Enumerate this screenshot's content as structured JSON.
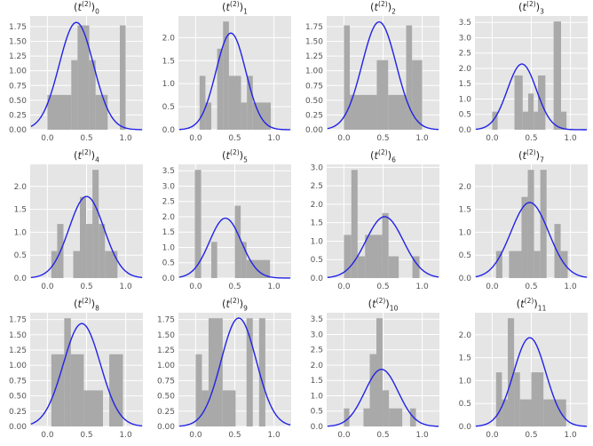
{
  "figure": {
    "background": "#ffffff",
    "axes_background": "#e5e5e5",
    "grid_color": "#ffffff",
    "bar_color": "#a9a9a9",
    "curve_color": "#2222e6",
    "tick_label_color": "#555555",
    "title_color": "#262626",
    "rows": 3,
    "cols": 4
  },
  "title_parts": {
    "open": "(",
    "var": "t",
    "sup": "(2)",
    "close": ")"
  },
  "chart_data": [
    {
      "type": "bar",
      "title": "(t^(2))_0",
      "subscript": "0",
      "xlim": [
        -0.22,
        1.22
      ],
      "xticks": [
        0,
        0.5,
        1
      ],
      "xtick_labels": [
        "0.0",
        "0.5",
        "1.0"
      ],
      "ylim": [
        0,
        1.93
      ],
      "yticks": [
        0,
        0.25,
        0.5,
        0.75,
        1.0,
        1.25,
        1.5,
        1.75
      ],
      "ytick_labels": [
        "0.00",
        "0.25",
        "0.50",
        "0.75",
        "1.00",
        "1.25",
        "1.50",
        "1.75"
      ],
      "bars": [
        [
          0.0,
          0.305,
          0.59
        ],
        [
          0.305,
          0.385,
          1.18
        ],
        [
          0.385,
          0.535,
          1.77
        ],
        [
          0.535,
          0.615,
          1.18
        ],
        [
          0.615,
          0.77,
          0.59
        ],
        [
          0.925,
          1.0,
          1.77
        ]
      ],
      "curve": {
        "shape": "gaussian",
        "mu": 0.37,
        "sigma": 0.219
      }
    },
    {
      "type": "bar",
      "title": "(t^(2))_1",
      "subscript": "1",
      "xlim": [
        -0.22,
        1.22
      ],
      "xticks": [
        0,
        0.5,
        1
      ],
      "xtick_labels": [
        "0.0",
        "0.5",
        "1.0"
      ],
      "ylim": [
        0,
        2.47
      ],
      "yticks": [
        0,
        0.5,
        1.0,
        1.5,
        2.0
      ],
      "ytick_labels": [
        "0.0",
        "0.5",
        "1.0",
        "1.5",
        "2.0"
      ],
      "bars": [
        [
          0.05,
          0.125,
          1.17
        ],
        [
          0.125,
          0.2,
          0.59
        ],
        [
          0.275,
          0.35,
          1.76
        ],
        [
          0.35,
          0.425,
          2.35
        ],
        [
          0.425,
          0.58,
          1.17
        ],
        [
          0.58,
          0.655,
          0.59
        ],
        [
          0.655,
          0.73,
          1.17
        ],
        [
          0.73,
          0.96,
          0.59
        ]
      ],
      "curve": {
        "shape": "gaussian",
        "mu": 0.45,
        "sigma": 0.19
      }
    },
    {
      "type": "bar",
      "title": "(t^(2))_2",
      "subscript": "2",
      "xlim": [
        -0.22,
        1.22
      ],
      "xticks": [
        0,
        0.5,
        1
      ],
      "xtick_labels": [
        "0.0",
        "0.5",
        "1.0"
      ],
      "ylim": [
        0,
        1.93
      ],
      "yticks": [
        0,
        0.25,
        0.5,
        0.75,
        1.0,
        1.25,
        1.5,
        1.75
      ],
      "ytick_labels": [
        "0.00",
        "0.25",
        "0.50",
        "0.75",
        "1.00",
        "1.25",
        "1.50",
        "1.75"
      ],
      "bars": [
        [
          0.0,
          0.075,
          1.77
        ],
        [
          0.075,
          0.42,
          0.59
        ],
        [
          0.42,
          0.565,
          1.18
        ],
        [
          0.565,
          0.795,
          0.59
        ],
        [
          0.795,
          0.87,
          1.77
        ],
        [
          0.87,
          1.0,
          1.18
        ]
      ],
      "curve": {
        "shape": "gaussian",
        "mu": 0.45,
        "sigma": 0.218
      }
    },
    {
      "type": "bar",
      "title": "(t^(2))_3",
      "subscript": "3",
      "xlim": [
        -0.22,
        1.22
      ],
      "xticks": [
        0,
        0.5,
        1
      ],
      "xtick_labels": [
        "0.0",
        "0.5",
        "1.0"
      ],
      "ylim": [
        0,
        3.71
      ],
      "yticks": [
        0,
        0.5,
        1.0,
        1.5,
        2.0,
        2.5,
        3.0,
        3.5
      ],
      "ytick_labels": [
        "0.0",
        "0.5",
        "1.0",
        "1.5",
        "2.0",
        "2.5",
        "3.0",
        "3.5"
      ],
      "bars": [
        [
          0.0,
          0.07,
          0.59
        ],
        [
          0.285,
          0.39,
          1.77
        ],
        [
          0.39,
          0.46,
          0.59
        ],
        [
          0.46,
          0.53,
          1.18
        ],
        [
          0.53,
          0.585,
          0.59
        ],
        [
          0.585,
          0.68,
          1.77
        ],
        [
          0.785,
          0.88,
          3.53
        ],
        [
          0.88,
          0.95,
          0.59
        ]
      ],
      "curve": {
        "shape": "gaussian",
        "mu": 0.38,
        "sigma": 0.186
      }
    },
    {
      "type": "bar",
      "title": "(t^(2))_4",
      "subscript": "4",
      "xlim": [
        -0.22,
        1.22
      ],
      "xticks": [
        0,
        0.5,
        1
      ],
      "xtick_labels": [
        "0.0",
        "0.5",
        "1.0"
      ],
      "ylim": [
        0,
        2.48
      ],
      "yticks": [
        0,
        0.5,
        1.0,
        1.5,
        2.0
      ],
      "ytick_labels": [
        "0.0",
        "0.5",
        "1.0",
        "1.5",
        "2.0"
      ],
      "bars": [
        [
          0.05,
          0.125,
          0.59
        ],
        [
          0.125,
          0.205,
          1.18
        ],
        [
          0.33,
          0.415,
          0.59
        ],
        [
          0.415,
          0.495,
          1.77
        ],
        [
          0.495,
          0.575,
          1.18
        ],
        [
          0.575,
          0.655,
          2.36
        ],
        [
          0.655,
          0.735,
          1.18
        ],
        [
          0.735,
          0.895,
          0.59
        ]
      ],
      "curve": {
        "shape": "gaussian",
        "mu": 0.5,
        "sigma": 0.224
      }
    },
    {
      "type": "bar",
      "title": "(t^(2))_5",
      "subscript": "5",
      "xlim": [
        -0.22,
        1.22
      ],
      "xticks": [
        0,
        0.5,
        1
      ],
      "xtick_labels": [
        "0.0",
        "0.5",
        "1.0"
      ],
      "ylim": [
        0,
        3.71
      ],
      "yticks": [
        0,
        0.5,
        1.0,
        1.5,
        2.0,
        2.5,
        3.0,
        3.5
      ],
      "ytick_labels": [
        "0.0",
        "0.5",
        "1.0",
        "1.5",
        "2.0",
        "2.5",
        "3.0",
        "3.5"
      ],
      "bars": [
        [
          -0.01,
          0.07,
          3.53
        ],
        [
          0.2,
          0.275,
          1.18
        ],
        [
          0.5,
          0.575,
          2.36
        ],
        [
          0.575,
          0.65,
          1.18
        ],
        [
          0.65,
          0.95,
          0.59
        ]
      ],
      "curve": {
        "shape": "gaussian",
        "mu": 0.38,
        "sigma": 0.204
      }
    },
    {
      "type": "bar",
      "title": "(t^(2))_6",
      "subscript": "6",
      "xlim": [
        -0.22,
        1.22
      ],
      "xticks": [
        0,
        0.5,
        1
      ],
      "xtick_labels": [
        "0.0",
        "0.5",
        "1.0"
      ],
      "ylim": [
        0,
        3.08
      ],
      "yticks": [
        0,
        0.5,
        1.0,
        1.5,
        2.0,
        2.5,
        3.0
      ],
      "ytick_labels": [
        "0.0",
        "0.5",
        "1.0",
        "1.5",
        "2.0",
        "2.5",
        "3.0"
      ],
      "bars": [
        [
          0.0,
          0.095,
          1.17
        ],
        [
          0.095,
          0.175,
          2.93
        ],
        [
          0.175,
          0.27,
          0.59
        ],
        [
          0.27,
          0.49,
          1.17
        ],
        [
          0.49,
          0.57,
          1.76
        ],
        [
          0.57,
          0.7,
          0.59
        ],
        [
          0.875,
          0.965,
          0.59
        ]
      ],
      "curve": {
        "shape": "gaussian",
        "mu": 0.52,
        "sigma": 0.24
      }
    },
    {
      "type": "bar",
      "title": "(t^(2))_7",
      "subscript": "7",
      "xlim": [
        -0.22,
        1.22
      ],
      "xticks": [
        0,
        0.5,
        1
      ],
      "xtick_labels": [
        "0.0",
        "0.5",
        "1.0"
      ],
      "ylim": [
        0,
        2.48
      ],
      "yticks": [
        0,
        0.5,
        1.0,
        1.5,
        2.0
      ],
      "ytick_labels": [
        "0.0",
        "0.5",
        "1.0",
        "1.5",
        "2.0"
      ],
      "bars": [
        [
          0.05,
          0.13,
          0.59
        ],
        [
          0.215,
          0.375,
          0.59
        ],
        [
          0.375,
          0.455,
          1.77
        ],
        [
          0.455,
          0.535,
          2.36
        ],
        [
          0.535,
          0.615,
          0.59
        ],
        [
          0.615,
          0.695,
          2.36
        ],
        [
          0.795,
          0.875,
          1.18
        ],
        [
          0.875,
          0.965,
          0.59
        ]
      ],
      "curve": {
        "shape": "gaussian",
        "mu": 0.48,
        "sigma": 0.242
      }
    },
    {
      "type": "bar",
      "title": "(t^(2))_8",
      "subscript": "8",
      "xlim": [
        -0.22,
        1.22
      ],
      "xticks": [
        0,
        0.5,
        1
      ],
      "xtick_labels": [
        "0.0",
        "0.5",
        "1.0"
      ],
      "ylim": [
        0,
        1.86
      ],
      "yticks": [
        0,
        0.25,
        0.5,
        0.75,
        1.0,
        1.25,
        1.5,
        1.75
      ],
      "ytick_labels": [
        "0.00",
        "0.25",
        "0.50",
        "0.75",
        "1.00",
        "1.25",
        "1.50",
        "1.75"
      ],
      "bars": [
        [
          0.05,
          0.215,
          1.18
        ],
        [
          0.215,
          0.3,
          1.77
        ],
        [
          0.3,
          0.465,
          1.18
        ],
        [
          0.465,
          0.71,
          0.59
        ],
        [
          0.79,
          0.965,
          1.18
        ]
      ],
      "curve": {
        "shape": "gaussian",
        "mu": 0.44,
        "sigma": 0.237
      }
    },
    {
      "type": "bar",
      "title": "(t^(2))_9",
      "subscript": "9",
      "xlim": [
        -0.22,
        1.22
      ],
      "xticks": [
        0,
        0.5,
        1
      ],
      "xtick_labels": [
        "0.0",
        "0.5",
        "1.0"
      ],
      "ylim": [
        0,
        1.86
      ],
      "yticks": [
        0,
        0.25,
        0.5,
        0.75,
        1.0,
        1.25,
        1.5,
        1.75
      ],
      "ytick_labels": [
        "0.00",
        "0.25",
        "0.50",
        "0.75",
        "1.00",
        "1.25",
        "1.50",
        "1.75"
      ],
      "bars": [
        [
          0.0,
          0.08,
          1.18
        ],
        [
          0.08,
          0.165,
          0.59
        ],
        [
          0.165,
          0.345,
          1.77
        ],
        [
          0.345,
          0.51,
          0.59
        ],
        [
          0.65,
          0.73,
          1.77
        ],
        [
          0.81,
          0.89,
          1.77
        ]
      ],
      "curve": {
        "shape": "gaussian",
        "mu": 0.55,
        "sigma": 0.225
      }
    },
    {
      "type": "bar",
      "title": "(t^(2))_10",
      "subscript": "10",
      "xlim": [
        -0.22,
        1.22
      ],
      "xticks": [
        0,
        0.5,
        1
      ],
      "xtick_labels": [
        "0.0",
        "0.5",
        "1.0"
      ],
      "ylim": [
        0,
        3.71
      ],
      "yticks": [
        0,
        0.5,
        1.0,
        1.5,
        2.0,
        2.5,
        3.0,
        3.5
      ],
      "ytick_labels": [
        "0.0",
        "0.5",
        "1.0",
        "1.5",
        "2.0",
        "2.5",
        "3.0",
        "3.5"
      ],
      "bars": [
        [
          0.0,
          0.07,
          0.59
        ],
        [
          0.25,
          0.33,
          0.59
        ],
        [
          0.33,
          0.415,
          2.36
        ],
        [
          0.415,
          0.495,
          3.53
        ],
        [
          0.495,
          0.575,
          1.18
        ],
        [
          0.575,
          0.745,
          0.59
        ],
        [
          0.845,
          0.92,
          0.59
        ]
      ],
      "curve": {
        "shape": "gaussian",
        "mu": 0.48,
        "sigma": 0.214
      }
    },
    {
      "type": "bar",
      "title": "(t^(2))_11",
      "subscript": "11",
      "xlim": [
        -0.22,
        1.22
      ],
      "xticks": [
        0,
        0.5,
        1
      ],
      "xtick_labels": [
        "0.0",
        "0.5",
        "1.0"
      ],
      "ylim": [
        0,
        2.48
      ],
      "yticks": [
        0,
        0.5,
        1.0,
        1.5,
        2.0
      ],
      "ytick_labels": [
        "0.0",
        "0.5",
        "1.0",
        "1.5",
        "2.0"
      ],
      "bars": [
        [
          0.05,
          0.125,
          1.18
        ],
        [
          0.125,
          0.2,
          0.59
        ],
        [
          0.2,
          0.28,
          2.36
        ],
        [
          0.28,
          0.355,
          1.18
        ],
        [
          0.355,
          0.5,
          0.59
        ],
        [
          0.5,
          0.655,
          1.18
        ],
        [
          0.655,
          0.945,
          0.59
        ]
      ],
      "curve": {
        "shape": "gaussian",
        "mu": 0.48,
        "sigma": 0.206
      }
    }
  ]
}
